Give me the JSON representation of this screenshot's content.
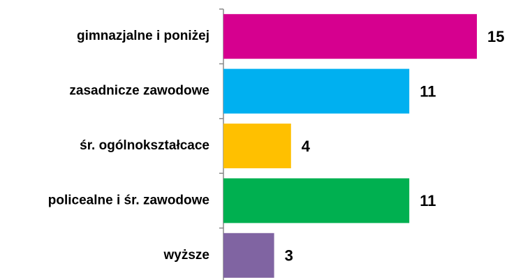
{
  "chart_data": {
    "type": "bar",
    "orientation": "horizontal",
    "categories": [
      "gimnazjalne i poniżej",
      "zasadnicze zawodowe",
      "śr. ogólnokształcace",
      "policealne i śr. zawodowe",
      "wyższe"
    ],
    "values": [
      15,
      11,
      4,
      11,
      3
    ],
    "colors": [
      "#d6008f",
      "#00b0f0",
      "#ffc000",
      "#00b050",
      "#8064a2"
    ],
    "data_labels": true
  }
}
